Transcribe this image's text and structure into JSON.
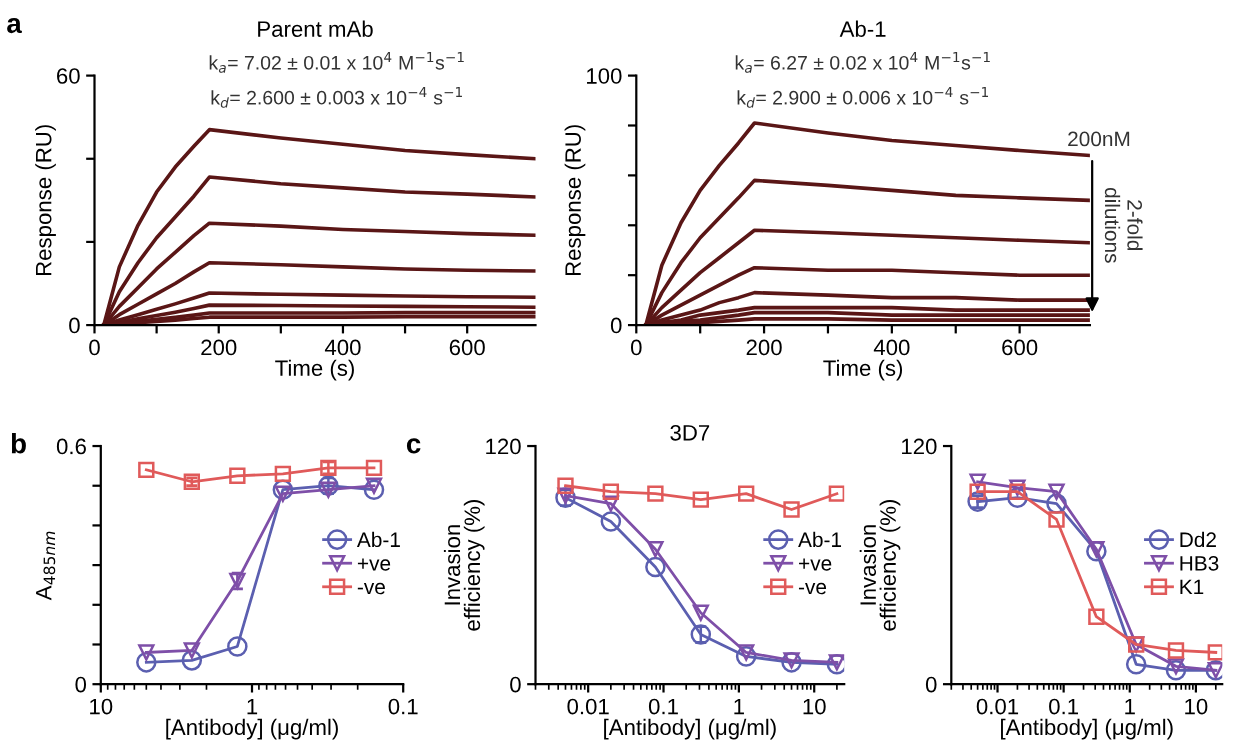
{
  "chart_data": [
    {
      "type": "line",
      "title": "Parent mAb",
      "xlabel": "Time (s)",
      "ylabel": "Response (RU)",
      "annotations": [
        "a",
        "k$_{a}$= 7.02 ± 0.01 x 10$^{4}$ M$^{−1}$s$^{−1}$",
        "k$_{d}$= 2.600 ± 0.003 x 10$^{−4}$ s$^{−1}$"
      ],
      "x": [
        15,
        40,
        70,
        100,
        130,
        160,
        185,
        300,
        400,
        500,
        600,
        710
      ],
      "series": [
        {
          "color": "#5a1616",
          "values": [
            0,
            14,
            24,
            32,
            38,
            43,
            47,
            45,
            43.5,
            42,
            41,
            40
          ]
        },
        {
          "color": "#5a1616",
          "values": [
            0,
            8,
            15,
            21,
            26,
            31,
            35.6,
            34,
            33,
            32,
            31.5,
            30.8
          ]
        },
        {
          "color": "#5a1616",
          "values": [
            0,
            4.5,
            9,
            13.5,
            17.5,
            21.5,
            24.5,
            23.8,
            23,
            22.5,
            22,
            21.6
          ]
        },
        {
          "color": "#5a1616",
          "values": [
            0,
            2.5,
            5,
            7.5,
            10,
            12.8,
            15,
            14.5,
            14,
            13.5,
            13.2,
            13
          ]
        },
        {
          "color": "#5a1616",
          "values": [
            0,
            1.2,
            2.5,
            3.8,
            5.1,
            6.5,
            7.7,
            7.4,
            7.2,
            7,
            6.8,
            6.7
          ]
        },
        {
          "color": "#5a1616",
          "values": [
            0,
            0.7,
            1.5,
            2.3,
            3.1,
            4,
            4.8,
            4.7,
            4.6,
            4.5,
            4.4,
            4.3
          ]
        },
        {
          "color": "#5a1616",
          "values": [
            0,
            0.4,
            0.9,
            1.4,
            1.9,
            2.4,
            2.9,
            2.9,
            2.9,
            3,
            3,
            3
          ]
        },
        {
          "color": "#5a1616",
          "values": [
            0,
            0.3,
            0.6,
            0.9,
            1.2,
            1.6,
            1.9,
            1.9,
            1.9,
            2,
            2,
            2
          ]
        }
      ],
      "xlim": [
        0,
        710
      ],
      "ylim": [
        0,
        60
      ],
      "xticks": [
        0,
        {
          "value": 100,
          "label": null
        },
        200,
        {
          "value": 300,
          "label": null
        },
        400,
        {
          "value": 500,
          "label": null
        },
        600
      ],
      "yticks": [
        0,
        {
          "value": 20,
          "label": null
        },
        {
          "value": 40,
          "label": null
        },
        60
      ],
      "marker": "none",
      "line_style": "solid"
    },
    {
      "type": "line",
      "title": "Ab-1",
      "xlabel": "Time (s)",
      "ylabel": "Response (RU)",
      "annotations": [
        "k$_{a}$= 6.27 ± 0.02 x 10$^{4}$ M$^{−1}$s$^{−1}$",
        "k$_{d}$= 2.900 ± 0.006 x 10$^{−4}$ s$^{−1}$",
        "200nM",
        "2-fold\ndilutions"
      ],
      "x": [
        15,
        40,
        70,
        100,
        130,
        160,
        185,
        300,
        400,
        500,
        600,
        710
      ],
      "series": [
        {
          "color": "#5a1616",
          "values": [
            0,
            24,
            41,
            54,
            64,
            73,
            81,
            77,
            74,
            72,
            70,
            68
          ]
        },
        {
          "color": "#5a1616",
          "values": [
            0,
            13,
            25,
            35,
            43,
            51,
            58,
            56,
            54,
            52,
            51,
            50
          ]
        },
        {
          "color": "#5a1616",
          "values": [
            0,
            7,
            14,
            21,
            27,
            33,
            38,
            37,
            36,
            35,
            34,
            33
          ]
        },
        {
          "color": "#5a1616",
          "values": [
            0,
            4,
            8,
            12,
            16,
            20,
            23,
            22,
            22,
            21,
            20,
            20
          ]
        },
        {
          "color": "#5a1616",
          "values": [
            0,
            2,
            4,
            6,
            9,
            11,
            13,
            12,
            11,
            11,
            10,
            10
          ]
        },
        {
          "color": "#5a1616",
          "values": [
            0,
            1,
            2,
            4,
            5,
            6,
            7,
            7,
            7,
            6,
            6,
            6
          ]
        },
        {
          "color": "#5a1616",
          "values": [
            0,
            1,
            1.5,
            2,
            3,
            4,
            5,
            5,
            4,
            4,
            4,
            4
          ]
        },
        {
          "color": "#5a1616",
          "values": [
            0,
            0.5,
            1,
            1,
            1.5,
            2,
            2.5,
            2.5,
            2,
            2,
            2,
            2
          ]
        }
      ],
      "xlim": [
        0,
        710
      ],
      "ylim": [
        0,
        100
      ],
      "xticks": [
        0,
        {
          "value": 100,
          "label": null
        },
        200,
        {
          "value": 300,
          "label": null
        },
        400,
        {
          "value": 500,
          "label": null
        },
        600
      ],
      "yticks": [
        0,
        {
          "value": 20,
          "label": null
        },
        {
          "value": 40,
          "label": null
        },
        {
          "value": 60,
          "label": null
        },
        {
          "value": 80,
          "label": null
        },
        100
      ],
      "marker": "none",
      "line_style": "solid"
    },
    {
      "type": "line",
      "xlabel": "[Antibody] (μg/ml)",
      "ylabel": "A$_{485nm}$",
      "annotations": [
        "b"
      ],
      "x": [
        5,
        2.5,
        1.25,
        0.625,
        0.3125,
        0.156
      ],
      "series": [
        {
          "name": "Ab-1",
          "color": "#5b5fb0",
          "marker": "circle",
          "values": [
            0.055,
            0.06,
            0.095,
            0.49,
            0.5,
            0.49
          ],
          "errors": [
            null,
            null,
            null,
            null,
            0.02,
            null
          ]
        },
        {
          "name": "+ve",
          "color": "#7e4fa8",
          "marker": "triangle",
          "values": [
            0.08,
            0.085,
            0.26,
            0.48,
            0.49,
            0.5
          ],
          "errors": [
            null,
            null,
            0.02,
            null,
            null,
            null
          ]
        },
        {
          "name": "-ve",
          "color": "#e05a5a",
          "marker": "square",
          "values": [
            0.54,
            0.51,
            0.525,
            0.53,
            0.545,
            0.545
          ],
          "errors": [
            null,
            0.01,
            null,
            null,
            0.015,
            null
          ]
        }
      ],
      "log": "x",
      "xlim": [
        10,
        0.1
      ],
      "ylim": [
        0,
        0.6
      ],
      "xticks": [
        10,
        1,
        0.1
      ],
      "yticks": [
        0,
        {
          "value": 0.1,
          "label": null
        },
        {
          "value": 0.2,
          "label": null
        },
        {
          "value": 0.3,
          "label": null
        },
        {
          "value": 0.4,
          "label": null
        },
        {
          "value": 0.5,
          "label": null
        },
        0.6
      ],
      "legend": "right",
      "line_style": "solid"
    },
    {
      "type": "line",
      "title": "3D7",
      "xlabel": "[Antibody] (μg/ml)",
      "ylabel": "Invasion\nefficiency (%)",
      "annotations": [
        "c"
      ],
      "x": [
        0.005,
        0.02,
        0.078,
        0.3125,
        1.25,
        5,
        20
      ],
      "series": [
        {
          "name": "Ab-1",
          "color": "#5b5fb0",
          "marker": "circle",
          "values": [
            94,
            82,
            59,
            25,
            14,
            11,
            10
          ],
          "errors": [
            4,
            null,
            null,
            4,
            null,
            null,
            null
          ]
        },
        {
          "name": "+ve",
          "color": "#7e4fa8",
          "marker": "triangle",
          "values": [
            95,
            91,
            68,
            36,
            16,
            12,
            11
          ]
        },
        {
          "name": "-ve",
          "color": "#e05a5a",
          "marker": "square",
          "values": [
            100,
            97,
            96,
            93,
            96,
            88,
            96
          ]
        }
      ],
      "log": "x",
      "xlim": [
        0.002,
        25
      ],
      "ylim": [
        0,
        120
      ],
      "xticks": [
        0.01,
        0.1,
        1,
        10
      ],
      "yticks": [
        0,
        120
      ],
      "legend": "right",
      "line_style": "solid"
    },
    {
      "type": "line",
      "xlabel": "[Antibody] (μg/ml)",
      "ylabel": "Invasion\nefficiency (%)",
      "x": [
        0.005,
        0.02,
        0.078,
        0.3125,
        1.25,
        5,
        20
      ],
      "series": [
        {
          "name": "Dd2",
          "color": "#5b5fb0",
          "marker": "circle",
          "values": [
            92,
            94,
            91,
            67,
            10,
            7,
            7
          ],
          "errors": [
            3,
            null,
            null,
            null,
            null,
            null,
            null
          ]
        },
        {
          "name": "HB3",
          "color": "#7e4fa8",
          "marker": "triangle",
          "values": [
            102,
            99,
            97,
            68,
            20,
            9,
            7
          ]
        },
        {
          "name": "K1",
          "color": "#e05a5a",
          "marker": "square",
          "values": [
            97,
            97,
            83,
            34,
            20,
            17,
            16
          ]
        }
      ],
      "log": "x",
      "xlim": [
        0.002,
        25
      ],
      "ylim": [
        0,
        120
      ],
      "xticks": [
        0.01,
        0.1,
        1,
        10
      ],
      "yticks": [
        0,
        120
      ],
      "legend": "right",
      "line_style": "solid"
    }
  ]
}
